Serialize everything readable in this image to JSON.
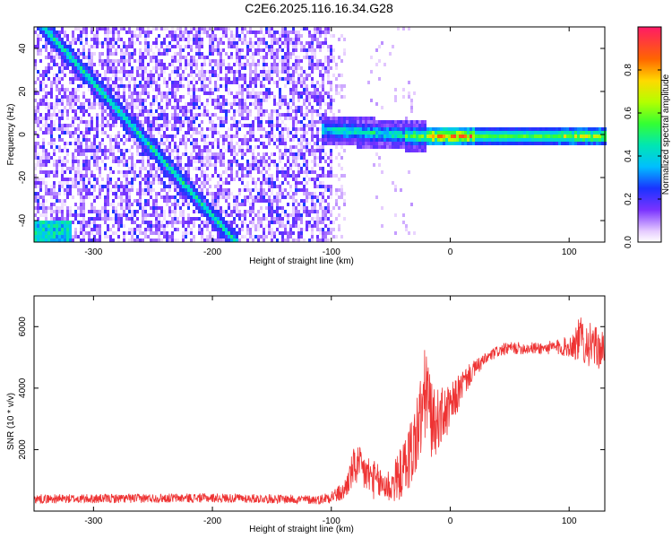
{
  "title": "C2E6.2025.116.16.34.G28",
  "chart_data": [
    {
      "type": "heatmap",
      "xlabel": "Height of straight line (km)",
      "ylabel": "Frequency (Hz)",
      "xlim": [
        -350,
        130
      ],
      "ylim": [
        -50,
        50
      ],
      "xticks": [
        -300,
        -200,
        -100,
        0,
        100
      ],
      "yticks": [
        -40,
        -20,
        0,
        20,
        40
      ],
      "noise_region_x": [
        -350,
        -100
      ],
      "features": {
        "diagonal_track": {
          "from": [
            -350,
            55
          ],
          "to": [
            -180,
            -50
          ],
          "amplitude": 0.45
        },
        "lower_left_blob": {
          "x": [
            -350,
            -320
          ],
          "y": [
            -50,
            -40
          ],
          "amplitude": 0.5
        },
        "horizontal_band": {
          "x_start": -110,
          "x_end": 130,
          "center_hz": 0,
          "peak_x": [
            -20,
            20
          ],
          "peak_amplitude": 0.95
        }
      },
      "colorbar": {
        "label": "Normalized spectral amplitude",
        "range": [
          0.0,
          1.0
        ],
        "ticks": [
          "0.0",
          "0.2",
          "0.4",
          "0.6",
          "0.8"
        ]
      }
    },
    {
      "type": "line",
      "xlabel": "Height of straight line (km)",
      "ylabel": "SNR (10 * v/v)",
      "xlim": [
        -350,
        130
      ],
      "ylim": [
        0,
        7000
      ],
      "xticks": [
        -300,
        -200,
        -100,
        0,
        100
      ],
      "yticks": [
        2000,
        4000,
        6000
      ],
      "color": "#ee3333",
      "series": [
        {
          "x": [
            -350,
            -300,
            -250,
            -200,
            -150,
            -110,
            -90,
            -80,
            -70,
            -60,
            -50,
            -40,
            -30,
            -25,
            -20,
            -15,
            -10,
            0,
            10,
            20,
            30,
            40,
            50,
            60,
            80,
            100,
            110,
            120,
            130
          ],
          "values": [
            400,
            400,
            420,
            430,
            400,
            370,
            600,
            1500,
            1200,
            900,
            800,
            1300,
            2200,
            3000,
            4000,
            2800,
            3000,
            3300,
            4100,
            4600,
            4950,
            5200,
            5300,
            5300,
            5300,
            5350,
            5600,
            5350,
            5200
          ],
          "noise": [
            150,
            150,
            150,
            150,
            150,
            150,
            300,
            700,
            700,
            600,
            600,
            900,
            1300,
            1500,
            1600,
            1200,
            1000,
            800,
            500,
            300,
            200,
            200,
            200,
            200,
            200,
            350,
            800,
            700,
            600
          ]
        }
      ]
    }
  ]
}
